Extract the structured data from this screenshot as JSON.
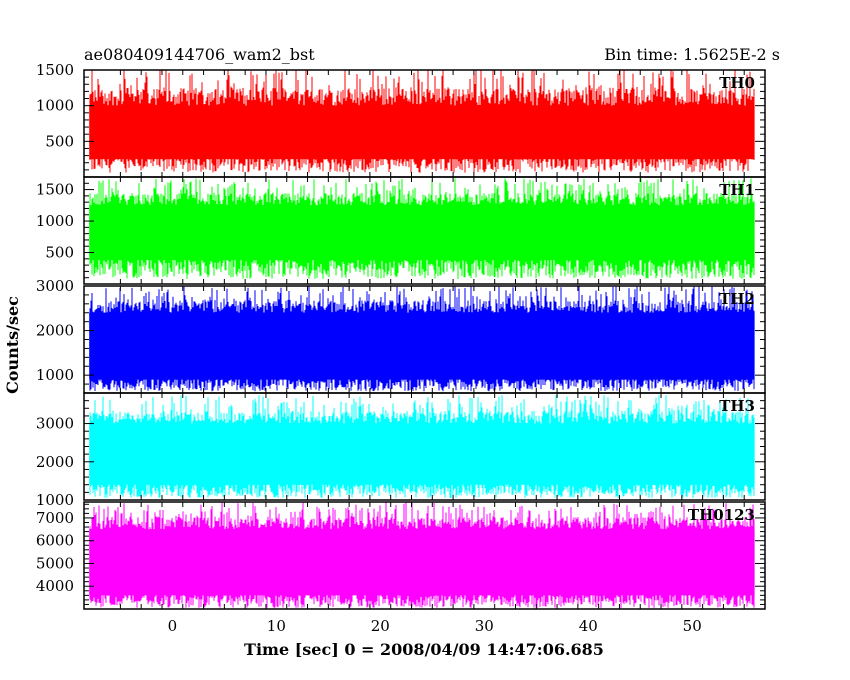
{
  "header": {
    "left": "ae080409144706_wam2_bst",
    "right": "Bin time: 1.5625E-2 s"
  },
  "chart_data": {
    "type": "line",
    "title": "ae080409144706_wam2_bst",
    "subtitle": "Bin time: 1.5625E-2 s",
    "xlabel": "Time [sec] 0 = 2008/04/09 14:47:06.685",
    "ylabel": "Counts/sec",
    "xlim": [
      -8.5,
      57
    ],
    "x_range_of_data": [
      -8,
      56
    ],
    "x_ticks": [
      0,
      10,
      20,
      30,
      40,
      50
    ],
    "x_tick_labels": [
      "0",
      "10",
      "20",
      "30",
      "40",
      "50"
    ],
    "grid": false,
    "panels": [
      {
        "name": "TH0",
        "color": "#ff0000",
        "ylim": [
          0,
          1500
        ],
        "y_ticks": [
          500,
          1000,
          1500
        ],
        "y_tick_labels": [
          "500",
          "1000",
          "1500"
        ],
        "band": {
          "low_min": 60,
          "low_max": 330,
          "core_low": 250,
          "core_high": 1000,
          "high_max": 1550
        }
      },
      {
        "name": "TH1",
        "color": "#00ff00",
        "ylim": [
          0,
          1700
        ],
        "y_ticks": [
          500,
          1000,
          1500
        ],
        "y_tick_labels": [
          "500",
          "1000",
          "1500"
        ],
        "band": {
          "low_min": 80,
          "low_max": 400,
          "core_low": 380,
          "core_high": 1250,
          "high_max": 1680
        }
      },
      {
        "name": "TH2",
        "color": "#0000ff",
        "ylim": [
          600,
          3000
        ],
        "y_ticks": [
          1000,
          2000,
          3000
        ],
        "y_tick_labels": [
          "1000",
          "2000",
          "3000"
        ],
        "band": {
          "low_min": 640,
          "low_max": 950,
          "core_low": 900,
          "core_high": 2400,
          "high_max": 3000
        }
      },
      {
        "name": "TH3",
        "color": "#00ffff",
        "ylim": [
          1000,
          3800
        ],
        "y_ticks": [
          1000,
          2000,
          3000
        ],
        "y_tick_labels": [
          "1000",
          "2000",
          "3000"
        ],
        "band": {
          "low_min": 1050,
          "low_max": 1450,
          "core_low": 1400,
          "core_high": 3000,
          "high_max": 3750
        }
      },
      {
        "name": "TH0123",
        "color": "#ff00ff",
        "ylim": [
          3000,
          7700
        ],
        "y_ticks": [
          4000,
          5000,
          6000,
          7000
        ],
        "y_tick_labels": [
          "4000",
          "5000",
          "6000",
          "7000"
        ],
        "band": {
          "low_min": 3050,
          "low_max": 3700,
          "core_low": 3600,
          "core_high": 6500,
          "high_max": 7700
        }
      }
    ]
  }
}
